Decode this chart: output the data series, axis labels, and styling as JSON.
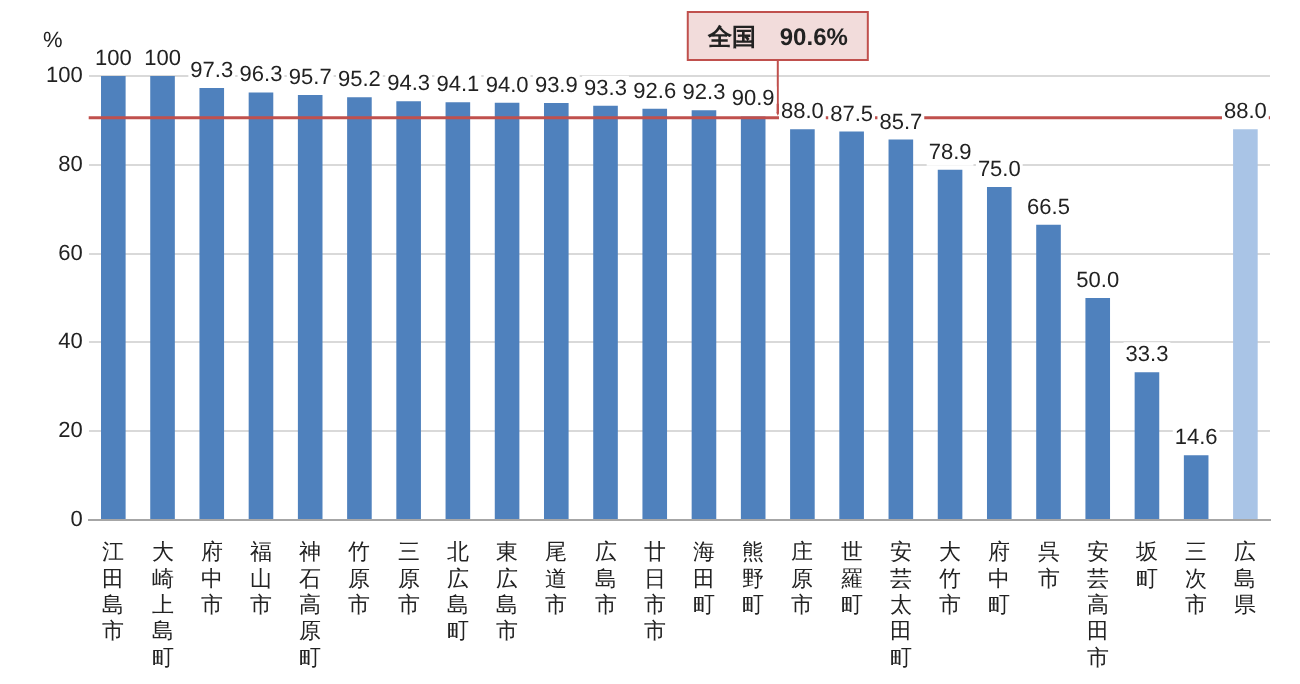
{
  "chart_data": {
    "type": "bar",
    "ylabel": "%",
    "categories": [
      "江田島市",
      "大崎上島町",
      "府中市",
      "福山市",
      "神石高原町",
      "竹原市",
      "三原市",
      "北広島町",
      "東広島市",
      "尾道市",
      "広島市",
      "廿日市市",
      "海田町",
      "熊野町",
      "庄原市",
      "世羅町",
      "安芸太田町",
      "大竹市",
      "府中町",
      "呉市",
      "安芸高田市",
      "坂町",
      "三次市",
      "広島県"
    ],
    "values": [
      100,
      100,
      97.3,
      96.3,
      95.7,
      95.2,
      94.3,
      94.1,
      94.0,
      93.9,
      93.3,
      92.6,
      92.3,
      90.9,
      88.0,
      87.5,
      85.7,
      78.9,
      75.0,
      66.5,
      50.0,
      33.3,
      14.6,
      88.0
    ],
    "value_labels": [
      "100",
      "100",
      "97.3",
      "96.3",
      "95.7",
      "95.2",
      "94.3",
      "94.1",
      "94.0",
      "93.9",
      "93.3",
      "92.6",
      "92.3",
      "90.9",
      "88.0",
      "87.5",
      "85.7",
      "78.9",
      "75.0",
      "66.5",
      "50.0",
      "33.3",
      "14.6",
      "88.0"
    ],
    "colors": [
      "#4f81bd",
      "#4f81bd",
      "#4f81bd",
      "#4f81bd",
      "#4f81bd",
      "#4f81bd",
      "#4f81bd",
      "#4f81bd",
      "#4f81bd",
      "#4f81bd",
      "#4f81bd",
      "#4f81bd",
      "#4f81bd",
      "#4f81bd",
      "#4f81bd",
      "#4f81bd",
      "#4f81bd",
      "#4f81bd",
      "#4f81bd",
      "#4f81bd",
      "#4f81bd",
      "#4f81bd",
      "#4f81bd",
      "#a9c4e6"
    ],
    "ylim": [
      0,
      100
    ],
    "yticks": [
      0,
      20,
      40,
      60,
      80,
      100
    ],
    "grid": "y",
    "ref_lines": [
      {
        "axis": "y",
        "value": 90.6,
        "label": "全国　90.6%",
        "color": "#c0504d"
      }
    ]
  }
}
